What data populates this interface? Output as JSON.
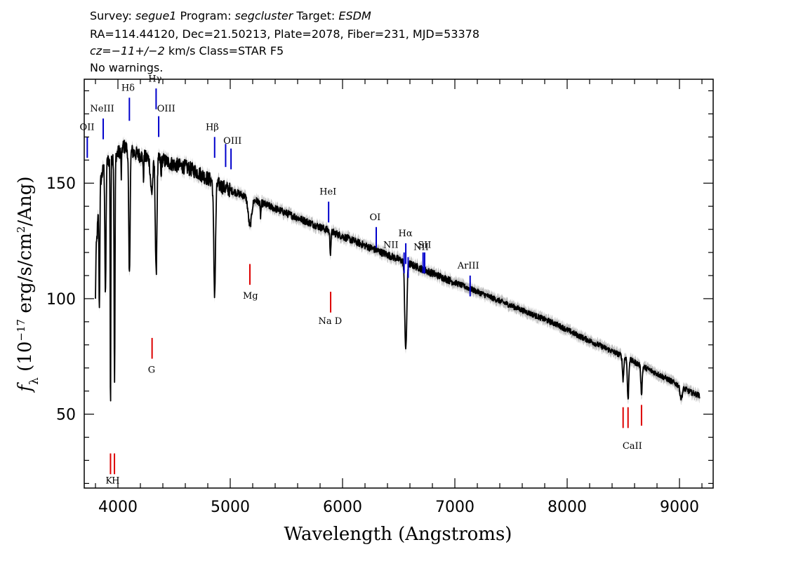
{
  "header": {
    "line1": [
      {
        "t": "Survey: ",
        "i": false
      },
      {
        "t": "segue1",
        "i": true
      },
      {
        "t": " Program: ",
        "i": false
      },
      {
        "t": "segcluster",
        "i": true
      },
      {
        "t": " Target: ",
        "i": false
      },
      {
        "t": "ESDM",
        "i": true
      }
    ],
    "line2": "RA=114.44120, Dec=21.50213, Plate=2078, Fiber=231, MJD=53378",
    "line3": [
      {
        "t": "cz=",
        "i": true
      },
      {
        "t": "−11+/−2",
        "i": true
      },
      {
        "t": " km/s Class=STAR F5",
        "i": false
      }
    ],
    "line4": "No warnings."
  },
  "chart_data": {
    "type": "line",
    "xlabel": "Wavelength (Angstroms)",
    "ylabel": "fλ (10⁻¹⁷ erg/s/cm²/Ang)",
    "xlim": [
      3700,
      9300
    ],
    "ylim": [
      18,
      195
    ],
    "xticks": [
      4000,
      5000,
      6000,
      7000,
      8000,
      9000
    ],
    "yticks": [
      50,
      100,
      150
    ],
    "grid": false,
    "continuum": [
      [
        3800,
        115
      ],
      [
        3840,
        150
      ],
      [
        3880,
        158
      ],
      [
        3920,
        160
      ],
      [
        4000,
        163
      ],
      [
        4050,
        166
      ],
      [
        4150,
        163
      ],
      [
        4250,
        161
      ],
      [
        4400,
        160
      ],
      [
        4500,
        158
      ],
      [
        4600,
        157
      ],
      [
        4700,
        155
      ],
      [
        4800,
        152
      ],
      [
        4950,
        148
      ],
      [
        5100,
        145
      ],
      [
        5300,
        141
      ],
      [
        5500,
        137
      ],
      [
        5700,
        133
      ],
      [
        5900,
        129
      ],
      [
        6100,
        125
      ],
      [
        6300,
        121
      ],
      [
        6500,
        117
      ],
      [
        6700,
        113
      ],
      [
        6900,
        109
      ],
      [
        7100,
        105
      ],
      [
        7300,
        101
      ],
      [
        7500,
        97
      ],
      [
        7700,
        93
      ],
      [
        7900,
        89
      ],
      [
        8100,
        84
      ],
      [
        8300,
        79.5
      ],
      [
        8500,
        75
      ],
      [
        8700,
        70
      ],
      [
        8900,
        65
      ],
      [
        9100,
        59.5
      ],
      [
        9180,
        58
      ]
    ],
    "absorption": [
      {
        "w": 3798,
        "depth": 20,
        "width": 3
      },
      {
        "w": 3835,
        "depth": 50,
        "width": 4
      },
      {
        "w": 3889,
        "depth": 58,
        "width": 5
      },
      {
        "w": 3934,
        "depth": 110,
        "width": 3
      },
      {
        "w": 3970,
        "depth": 100,
        "width": 4
      },
      {
        "w": 4030,
        "depth": 12,
        "width": 3
      },
      {
        "w": 4102,
        "depth": 55,
        "width": 6
      },
      {
        "w": 4227,
        "depth": 10,
        "width": 3
      },
      {
        "w": 4300,
        "depth": 15,
        "width": 10
      },
      {
        "w": 4340,
        "depth": 50,
        "width": 7
      },
      {
        "w": 4384,
        "depth": 8,
        "width": 3
      },
      {
        "w": 4861,
        "depth": 48,
        "width": 8
      },
      {
        "w": 5175,
        "depth": 12,
        "width": 15
      },
      {
        "w": 5270,
        "depth": 6,
        "width": 4
      },
      {
        "w": 5892,
        "depth": 9,
        "width": 5
      },
      {
        "w": 6563,
        "depth": 38,
        "width": 9
      },
      {
        "w": 8498,
        "depth": 10,
        "width": 6
      },
      {
        "w": 8542,
        "depth": 18,
        "width": 6
      },
      {
        "w": 8662,
        "depth": 12,
        "width": 6
      },
      {
        "w": 9015,
        "depth": 5,
        "width": 10
      }
    ],
    "emission_lines": [
      {
        "label": "OII",
        "x": 3727,
        "y0": 161,
        "y1": 170,
        "lx": 3725,
        "ly": 173,
        "anchor": "middle",
        "color": "#0000cc"
      },
      {
        "label": "NeIII",
        "x": 3869,
        "y0": 169,
        "y1": 178,
        "lx": 3860,
        "ly": 181,
        "anchor": "middle",
        "color": "#0000cc"
      },
      {
        "label": "Hδ",
        "x": 4102,
        "y0": 177,
        "y1": 187,
        "lx": 4090,
        "ly": 190,
        "anchor": "middle",
        "color": "#0000cc"
      },
      {
        "label": "Hγ",
        "x": 4340,
        "y0": 182,
        "y1": 191,
        "lx": 4330,
        "ly": 194,
        "anchor": "middle",
        "color": "#0000cc"
      },
      {
        "label": "OIII",
        "x": 4363,
        "y0": 170,
        "y1": 179,
        "lx": 4430,
        "ly": 181,
        "anchor": "middle",
        "color": "#0000cc"
      },
      {
        "label": "Hβ",
        "x": 4861,
        "y0": 161,
        "y1": 170,
        "lx": 4840,
        "ly": 173,
        "anchor": "middle",
        "color": "#0000cc"
      },
      {
        "label": "OIII",
        "x": 4959,
        "y0": 157,
        "y1": 167,
        "lx": 5020,
        "ly": 167,
        "anchor": "middle",
        "color": "#0000cc"
      },
      {
        "label": "OIII",
        "x": 5007,
        "y0": 156,
        "y1": 165,
        "lx": 5020,
        "ly": 167,
        "anchor": "middle",
        "color": "#0000cc",
        "nolabel": true
      },
      {
        "label": "HeI",
        "x": 5876,
        "y0": 133,
        "y1": 142,
        "lx": 5870,
        "ly": 145,
        "anchor": "middle",
        "color": "#0000cc"
      },
      {
        "label": "OI",
        "x": 6300,
        "y0": 122,
        "y1": 131,
        "lx": 6290,
        "ly": 134,
        "anchor": "middle",
        "color": "#0000cc"
      },
      {
        "label": "NII",
        "x": 6548,
        "y0": 111,
        "y1": 120,
        "lx": 6430,
        "ly": 122,
        "anchor": "middle",
        "color": "#0000cc"
      },
      {
        "label": "Hα",
        "x": 6563,
        "y0": 115,
        "y1": 124,
        "lx": 6560,
        "ly": 127,
        "anchor": "middle",
        "color": "#0000cc"
      },
      {
        "label": "NII",
        "x": 6584,
        "y0": 109,
        "y1": 118,
        "lx": 6700,
        "ly": 121,
        "anchor": "middle",
        "color": "#0000cc"
      },
      {
        "label": "SII",
        "x": 6717,
        "y0": 111,
        "y1": 120,
        "lx": 6730,
        "ly": 122,
        "anchor": "middle",
        "color": "#0000cc"
      },
      {
        "label": "SII",
        "x": 6731,
        "y0": 111,
        "y1": 120,
        "lx": 6730,
        "ly": 122,
        "anchor": "middle",
        "color": "#0000cc",
        "nolabel": true
      },
      {
        "label": "ArIII",
        "x": 7136,
        "y0": 101,
        "y1": 110,
        "lx": 7120,
        "ly": 113,
        "anchor": "middle",
        "color": "#0000cc"
      }
    ],
    "absorption_labels": [
      {
        "label": "K",
        "x": 3934,
        "y0": 24,
        "y1": 33,
        "lx": 3920,
        "ly": 20,
        "color": "#dd0000"
      },
      {
        "label": "H",
        "x": 3969,
        "y0": 24,
        "y1": 33,
        "lx": 3980,
        "ly": 20,
        "color": "#dd0000"
      },
      {
        "label": "G",
        "x": 4304,
        "y0": 74,
        "y1": 83,
        "lx": 4300,
        "ly": 68,
        "color": "#dd0000"
      },
      {
        "label": "Mg",
        "x": 5175,
        "y0": 106,
        "y1": 115,
        "lx": 5180,
        "ly": 100,
        "color": "#dd0000"
      },
      {
        "label": "Na D",
        "x": 5894,
        "y0": 94,
        "y1": 103,
        "lx": 5890,
        "ly": 89,
        "color": "#dd0000"
      },
      {
        "label": "CaII",
        "x": 8498,
        "y0": 44,
        "y1": 53,
        "lx": 8580,
        "ly": 35,
        "color": "#dd0000"
      },
      {
        "label": "",
        "x": 8542,
        "y0": 44,
        "y1": 53,
        "color": "#dd0000"
      },
      {
        "label": "",
        "x": 8662,
        "y0": 45,
        "y1": 54,
        "color": "#dd0000"
      }
    ],
    "series_color": "#000000",
    "error_color": "#bbbbbb"
  }
}
